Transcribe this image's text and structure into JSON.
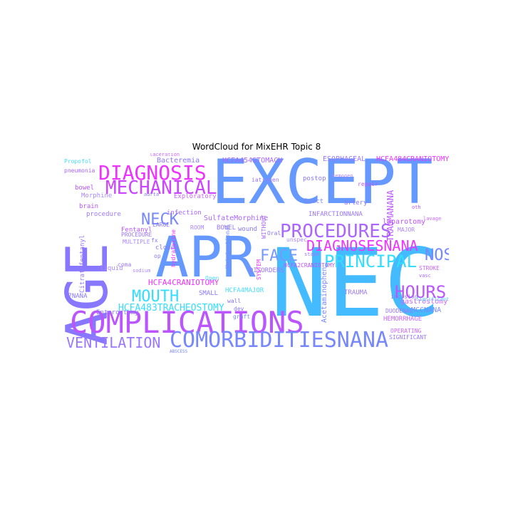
{
  "title": "WordCloud for MixEHR Topic 8",
  "colors": [
    "#33ddff",
    "#44bbff",
    "#6699ff",
    "#8877ff",
    "#bb55ff",
    "#ee33ff",
    "#ff22ff",
    "#aa88ff",
    "#55ccff",
    "#cc66ff"
  ],
  "words": [
    {
      "text": "EXCEPT",
      "color": "#6699ff",
      "weight": 1.0,
      "orient": "h"
    },
    {
      "text": "NEC",
      "color": "#44bbff",
      "weight": 0.98,
      "orient": "h"
    },
    {
      "text": "APR",
      "color": "#6699ff",
      "weight": 0.8,
      "orient": "h"
    },
    {
      "text": "AGE",
      "color": "#8877ff",
      "weight": 0.74,
      "orient": "v"
    },
    {
      "text": "COMPLICATIONS",
      "color": "#bb55ff",
      "weight": 0.5,
      "orient": "h"
    },
    {
      "text": "COMORBIDITIESNANA",
      "color": "#7788ff",
      "weight": 0.4,
      "orient": "h"
    },
    {
      "text": "DIAGNOSIS",
      "color": "#ee33ff",
      "weight": 0.38,
      "orient": "h"
    },
    {
      "text": "MECHANICAL",
      "color": "#cc44ff",
      "weight": 0.36,
      "orient": "h"
    },
    {
      "text": "PROCEDURES",
      "color": "#aa66ff",
      "weight": 0.36,
      "orient": "h"
    },
    {
      "text": "HOURS",
      "color": "#bb55ff",
      "weight": 0.34,
      "orient": "h"
    },
    {
      "text": "PRINCIPAL",
      "color": "#33ddff",
      "weight": 0.34,
      "orient": "h"
    },
    {
      "text": "NECK",
      "color": "#7788ff",
      "weight": 0.33,
      "orient": "h"
    },
    {
      "text": "FACE",
      "color": "#7799ff",
      "weight": 0.33,
      "orient": "h"
    },
    {
      "text": "NOS",
      "color": "#7788ff",
      "weight": 0.33,
      "orient": "h"
    },
    {
      "text": "MOUTH",
      "color": "#33ddff",
      "weight": 0.32,
      "orient": "h"
    },
    {
      "text": "VENTILATION",
      "color": "#9977ff",
      "weight": 0.3,
      "orient": "h"
    },
    {
      "text": "DIAGNOSESNANA",
      "color": "#ee33ff",
      "weight": 0.3,
      "orient": "h"
    },
    {
      "text": "HCFA483TRACHEOSTOMY",
      "color": "#33ddff",
      "weight": 0.22,
      "orient": "h"
    },
    {
      "text": "TRAUMANANA",
      "color": "#bb55ff",
      "weight": 0.2,
      "orient": "v"
    },
    {
      "text": "HCFA4CRANIOTOMY",
      "color": "#ee33ff",
      "weight": 0.17,
      "orient": "h"
    },
    {
      "text": "HCFA484CRANIOTOMY",
      "color": "#ee33ff",
      "weight": 0.16,
      "orient": "h"
    },
    {
      "text": "HCFA454STOMACH",
      "color": "#aa66ff",
      "weight": 0.16,
      "orient": "h"
    },
    {
      "text": "ESOPHAGEAL",
      "color": "#9977ff",
      "weight": 0.16,
      "orient": "h"
    },
    {
      "text": "HCFA414INTRACRANIAL",
      "color": "#aa66ff",
      "weight": 0.15,
      "orient": "h"
    },
    {
      "text": "laparotomy",
      "color": "#bb55ff",
      "weight": 0.16,
      "orient": "h"
    },
    {
      "text": "gastrostomy",
      "color": "#cc66ff",
      "weight": 0.16,
      "orient": "h"
    },
    {
      "text": "MCCNANA",
      "color": "#7788ff",
      "weight": 0.15,
      "orient": "h"
    },
    {
      "text": "HEMORRHAGE",
      "color": "#cc66ff",
      "weight": 0.14,
      "orient": "h"
    },
    {
      "text": "SulfateMorphine",
      "color": "#aa66ff",
      "weight": 0.14,
      "orient": "h"
    },
    {
      "text": "Bacteremia",
      "color": "#8877ff",
      "weight": 0.15,
      "orient": "h"
    },
    {
      "text": "Morphine",
      "color": "#aa88ff",
      "weight": 0.14,
      "orient": "h"
    },
    {
      "text": "procedure",
      "color": "#9977ff",
      "weight": 0.14,
      "orient": "h"
    },
    {
      "text": "infection",
      "color": "#aa66ff",
      "weight": 0.14,
      "orient": "h"
    },
    {
      "text": "Exploratory",
      "color": "#cc66ff",
      "weight": 0.13,
      "orient": "h"
    },
    {
      "text": "brain",
      "color": "#bb55ff",
      "weight": 0.14,
      "orient": "h"
    },
    {
      "text": "bowel",
      "color": "#bb55ff",
      "weight": 0.14,
      "orient": "h"
    },
    {
      "text": "pneumonia",
      "color": "#aa66ff",
      "weight": 0.13,
      "orient": "h"
    },
    {
      "text": "Propofol",
      "color": "#44ddff",
      "weight": 0.13,
      "orient": "h"
    },
    {
      "text": "laceration",
      "color": "#cc66ff",
      "weight": 0.12,
      "orient": "h"
    },
    {
      "text": "postop",
      "color": "#8877ff",
      "weight": 0.14,
      "orient": "h"
    },
    {
      "text": "artery",
      "color": "#8877ff",
      "weight": 0.14,
      "orient": "h"
    },
    {
      "text": "React",
      "color": "#7788ff",
      "weight": 0.13,
      "orient": "h"
    },
    {
      "text": "iatrogen",
      "color": "#9977ff",
      "weight": 0.13,
      "orient": "h"
    },
    {
      "text": "HCFA4MAJOR",
      "color": "#44ddff",
      "weight": 0.12,
      "orient": "h"
    },
    {
      "text": "HCFA2CRANIOTOMY",
      "color": "#bb55ff",
      "weight": 0.12,
      "orient": "h"
    },
    {
      "text": "INFARCTIONNANA",
      "color": "#9977ff",
      "weight": 0.13,
      "orient": "h"
    },
    {
      "text": "SMALL",
      "color": "#8877ff",
      "weight": 0.13,
      "orient": "h"
    },
    {
      "text": "DISORDERS",
      "color": "#9977ff",
      "weight": 0.13,
      "orient": "h"
    },
    {
      "text": "wound",
      "color": "#8877ff",
      "weight": 0.13,
      "orient": "h"
    },
    {
      "text": "BOWEL",
      "color": "#9977ff",
      "weight": 0.13,
      "orient": "h"
    },
    {
      "text": "ROOM",
      "color": "#aa88ff",
      "weight": 0.12,
      "orient": "h"
    },
    {
      "text": "closed",
      "color": "#8877ff",
      "weight": 0.13,
      "orient": "h"
    },
    {
      "text": "Fentanyl",
      "color": "#bb55ff",
      "weight": 0.13,
      "orient": "h"
    },
    {
      "text": "PROCEDURE",
      "color": "#9977ff",
      "weight": 0.13,
      "orient": "h"
    },
    {
      "text": "MULTIPLE",
      "color": "#aa88ff",
      "weight": 0.12,
      "orient": "h"
    },
    {
      "text": "LARGE",
      "color": "#8877ff",
      "weight": 0.12,
      "orient": "h"
    },
    {
      "text": "Citratefentanyl",
      "color": "#9977ff",
      "weight": 0.12,
      "orient": "v"
    },
    {
      "text": "liquid",
      "color": "#aa88ff",
      "weight": 0.13,
      "orient": "h"
    },
    {
      "text": "coma",
      "color": "#9977ff",
      "weight": 0.12,
      "orient": "h"
    },
    {
      "text": "fx",
      "color": "#8877ff",
      "weight": 0.12,
      "orient": "h"
    },
    {
      "text": "op",
      "color": "#8877ff",
      "weight": 0.12,
      "orient": "h"
    },
    {
      "text": "17NANA",
      "color": "#8877ff",
      "weight": 0.12,
      "orient": "h"
    },
    {
      "text": "Enterostomy",
      "color": "#8877ff",
      "weight": 0.13,
      "orient": "h"
    },
    {
      "text": "TRAUMA",
      "color": "#9977ff",
      "weight": 0.13,
      "orient": "h"
    },
    {
      "text": "Open",
      "color": "#44ddff",
      "weight": 0.13,
      "orient": "h"
    },
    {
      "text": "wall",
      "color": "#8877ff",
      "weight": 0.12,
      "orient": "h"
    },
    {
      "text": "dev",
      "color": "#8877ff",
      "weight": 0.12,
      "orient": "h"
    },
    {
      "text": "graft",
      "color": "#7788ff",
      "weight": 0.13,
      "orient": "h"
    },
    {
      "text": "incision",
      "color": "#8877ff",
      "weight": 0.13,
      "orient": "h"
    },
    {
      "text": "DUODENAL",
      "color": "#9977ff",
      "weight": 0.12,
      "orient": "h"
    },
    {
      "text": "OPERATING",
      "color": "#cc66ff",
      "weight": 0.12,
      "orient": "h"
    },
    {
      "text": "SIGNIFICANT",
      "color": "#9977ff",
      "weight": 0.12,
      "orient": "h"
    },
    {
      "text": "STROKE",
      "color": "#cc66ff",
      "weight": 0.12,
      "orient": "h"
    },
    {
      "text": "MAJOR",
      "color": "#aa88ff",
      "weight": 0.12,
      "orient": "h"
    },
    {
      "text": "repair",
      "color": "#bb55ff",
      "weight": 0.12,
      "orient": "h"
    },
    {
      "text": "Significant",
      "color": "#55ccff",
      "weight": 0.11,
      "orient": "h"
    },
    {
      "text": "Acetaminophen",
      "color": "#7788ff",
      "weight": 0.13,
      "orient": "v"
    },
    {
      "text": "Unintentional",
      "color": "#7788ff",
      "weight": 0.11,
      "orient": "v"
    },
    {
      "text": "unspec",
      "color": "#aa88ff",
      "weight": 0.11,
      "orient": "h"
    },
    {
      "text": "Oral",
      "color": "#8877ff",
      "weight": 0.11,
      "orient": "h"
    },
    {
      "text": "staph",
      "color": "#9977ff",
      "weight": 0.1,
      "orient": "h"
    },
    {
      "text": "SYSTEM",
      "color": "#ee33ff",
      "weight": 0.1,
      "orient": "v"
    },
    {
      "text": "WITHOUT",
      "color": "#aa66ff",
      "weight": 0.1,
      "orient": "v"
    },
    {
      "text": "hydralazine",
      "color": "#ee33ff",
      "weight": 0.1,
      "orient": "v"
    },
    {
      "text": "vasc",
      "color": "#aa66ff",
      "weight": 0.1,
      "orient": "h"
    },
    {
      "text": "lavage",
      "color": "#cc66ff",
      "weight": 0.09,
      "orient": "h"
    },
    {
      "text": "oth",
      "color": "#bb55ff",
      "weight": 0.1,
      "orient": "h"
    },
    {
      "text": "aorta",
      "color": "#8877ff",
      "weight": 0.1,
      "orient": "h"
    },
    {
      "text": "sodium",
      "color": "#aa88ff",
      "weight": 0.09,
      "orient": "h"
    },
    {
      "text": "kemogen",
      "color": "#aa88ff",
      "weight": 0.09,
      "orient": "h"
    },
    {
      "text": "ABSCESS",
      "color": "#7788ff",
      "weight": 0.09,
      "orient": "h"
    }
  ]
}
